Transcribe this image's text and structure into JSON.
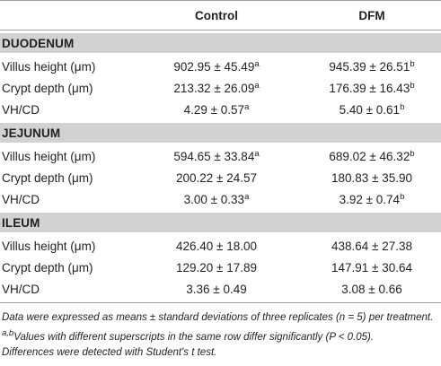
{
  "header": {
    "col_label": "",
    "col_control": "Control",
    "col_dfm": "DFM"
  },
  "sections": [
    {
      "title": "DUODENUM",
      "rows": [
        {
          "label": "Villus height (μm)",
          "control": "902.95 ± 45.49",
          "control_sup": "a",
          "dfm": "945.39 ± 26.51",
          "dfm_sup": "b"
        },
        {
          "label": "Crypt depth (μm)",
          "control": "213.32 ± 26.09",
          "control_sup": "a",
          "dfm": "176.39 ± 16.43",
          "dfm_sup": "b"
        },
        {
          "label": "VH/CD",
          "control": "4.29 ± 0.57",
          "control_sup": "a",
          "dfm": "5.40 ± 0.61",
          "dfm_sup": "b"
        }
      ]
    },
    {
      "title": "JEJUNUM",
      "rows": [
        {
          "label": "Villus height (μm)",
          "control": "594.65 ± 33.84",
          "control_sup": "a",
          "dfm": "689.02 ± 46.32",
          "dfm_sup": "b"
        },
        {
          "label": "Crypt depth (μm)",
          "control": "200.22 ± 24.57",
          "control_sup": "",
          "dfm": "180.83 ± 35.90",
          "dfm_sup": ""
        },
        {
          "label": "VH/CD",
          "control": "3.00 ± 0.33",
          "control_sup": "a",
          "dfm": "3.92 ± 0.74",
          "dfm_sup": "b"
        }
      ]
    },
    {
      "title": "ILEUM",
      "rows": [
        {
          "label": "Villus height (μm)",
          "control": "426.40 ± 18.00",
          "control_sup": "",
          "dfm": "438.64 ± 27.38",
          "dfm_sup": ""
        },
        {
          "label": "Crypt depth (μm)",
          "control": "129.20 ± 17.89",
          "control_sup": "",
          "dfm": "147.91 ± 30.64",
          "dfm_sup": ""
        },
        {
          "label": "VH/CD",
          "control": "3.36 ± 0.49",
          "control_sup": "",
          "dfm": "3.08 ± 0.66",
          "dfm_sup": ""
        }
      ]
    }
  ],
  "footnotes": {
    "note1": "Data were expressed as means ± standard deviations of three replicates (n = 5) per treatment.",
    "note2_sup": "a,b",
    "note2": "Values with different superscripts in the same row differ significantly (P < 0.05).",
    "note3": "Differences were detected with Student's t test."
  }
}
